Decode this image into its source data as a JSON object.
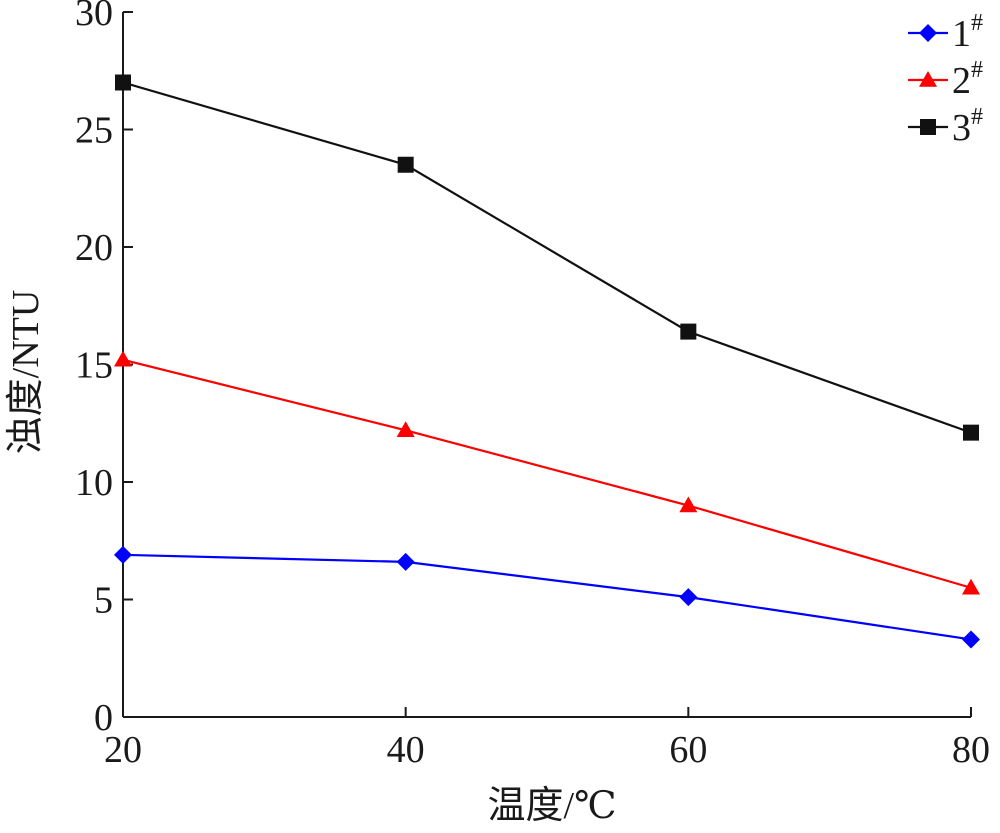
{
  "chart_data": {
    "type": "line",
    "xlabel": "温度/℃",
    "ylabel": "浊度/NTU",
    "x": [
      20,
      40,
      60,
      80
    ],
    "xlim": [
      20,
      80
    ],
    "ylim": [
      0,
      30
    ],
    "xticks": [
      "20",
      "40",
      "60",
      "80"
    ],
    "yticks": [
      "0",
      "5",
      "10",
      "15",
      "20",
      "25",
      "30"
    ],
    "grid": false,
    "legend_position": "top-right",
    "series": [
      {
        "name": "1#",
        "label_main": "1",
        "label_sup": "#",
        "color": "#0000ff",
        "marker": "diamond",
        "values": [
          6.9,
          6.6,
          5.1,
          3.3
        ]
      },
      {
        "name": "2#",
        "label_main": "2",
        "label_sup": "#",
        "color": "#ff0000",
        "marker": "triangle",
        "values": [
          15.2,
          12.2,
          9.0,
          5.5
        ]
      },
      {
        "name": "3#",
        "label_main": "3",
        "label_sup": "#",
        "color": "#111111",
        "marker": "square",
        "values": [
          27.0,
          23.5,
          16.4,
          12.1
        ]
      }
    ]
  }
}
